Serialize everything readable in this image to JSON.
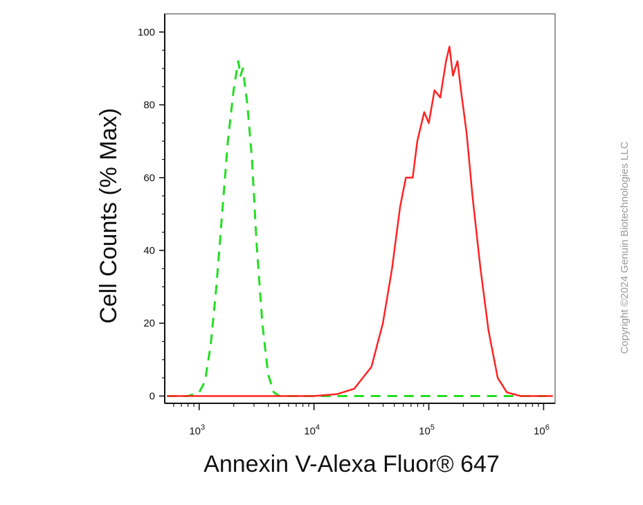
{
  "chart_data": {
    "type": "line",
    "title": "",
    "xlabel": "Annexin V-Alexa Fluor® 647",
    "ylabel": "Cell Counts (% Max)",
    "xscale": "log",
    "xlim_log10": [
      2.7,
      6.1
    ],
    "ylim": [
      -2,
      105
    ],
    "x_ticks": [
      {
        "exp": 3,
        "base": "10",
        "sup": "3"
      },
      {
        "exp": 4,
        "base": "10",
        "sup": "4"
      },
      {
        "exp": 5,
        "base": "10",
        "sup": "5"
      },
      {
        "exp": 6,
        "base": "10",
        "sup": "6"
      }
    ],
    "y_ticks": [
      {
        "value": 0,
        "label": "0"
      },
      {
        "value": 20,
        "label": "20"
      },
      {
        "value": 40,
        "label": "40"
      },
      {
        "value": 60,
        "label": "60"
      },
      {
        "value": 80,
        "label": "80"
      },
      {
        "value": 100,
        "label": "100"
      }
    ],
    "grid": false,
    "series": [
      {
        "color": "#22dd22",
        "style": "dashed",
        "points_log10x_y": [
          [
            2.72,
            0
          ],
          [
            2.9,
            0
          ],
          [
            3.0,
            1
          ],
          [
            3.05,
            4
          ],
          [
            3.1,
            14
          ],
          [
            3.15,
            30
          ],
          [
            3.2,
            50
          ],
          [
            3.25,
            70
          ],
          [
            3.3,
            84
          ],
          [
            3.34,
            92
          ],
          [
            3.36,
            88
          ],
          [
            3.38,
            90
          ],
          [
            3.42,
            80
          ],
          [
            3.46,
            65
          ],
          [
            3.5,
            42
          ],
          [
            3.55,
            20
          ],
          [
            3.6,
            6
          ],
          [
            3.65,
            1
          ],
          [
            3.7,
            0
          ],
          [
            6.08,
            0
          ]
        ]
      },
      {
        "color": "#ff2222",
        "style": "solid",
        "points_log10x_y": [
          [
            2.72,
            0
          ],
          [
            4.0,
            0
          ],
          [
            4.2,
            0.5
          ],
          [
            4.35,
            2
          ],
          [
            4.5,
            8
          ],
          [
            4.6,
            20
          ],
          [
            4.68,
            35
          ],
          [
            4.75,
            52
          ],
          [
            4.8,
            60
          ],
          [
            4.86,
            60
          ],
          [
            4.9,
            70
          ],
          [
            4.96,
            78
          ],
          [
            5.0,
            75
          ],
          [
            5.05,
            84
          ],
          [
            5.1,
            82
          ],
          [
            5.15,
            92
          ],
          [
            5.18,
            96
          ],
          [
            5.21,
            88
          ],
          [
            5.25,
            92
          ],
          [
            5.28,
            84
          ],
          [
            5.33,
            72
          ],
          [
            5.38,
            55
          ],
          [
            5.45,
            35
          ],
          [
            5.52,
            18
          ],
          [
            5.6,
            5
          ],
          [
            5.68,
            1
          ],
          [
            5.8,
            0
          ],
          [
            6.08,
            0
          ]
        ]
      }
    ]
  },
  "watermark": {
    "copyright": "Copyright ©2024 Genuin Biotechnologies LLC"
  },
  "colors": {
    "axis": "#111111",
    "frame": "#777777",
    "green_series": "#22dd22",
    "red_series": "#ff2222"
  }
}
